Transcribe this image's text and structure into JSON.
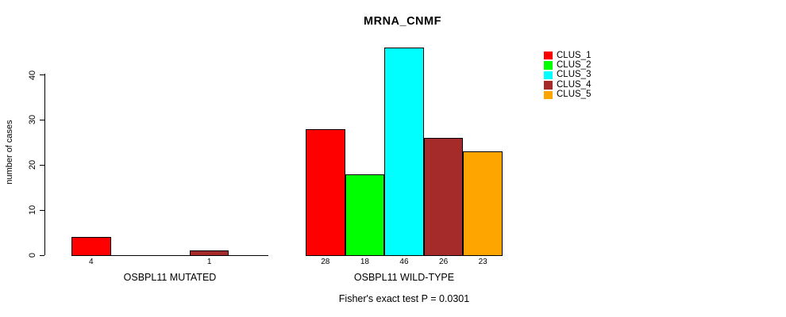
{
  "chart_data": {
    "type": "bar",
    "title": "MRNA_CNMF",
    "xlabel": "",
    "ylabel": "number of cases",
    "ylim": [
      0,
      46
    ],
    "yticks": [
      0,
      10,
      20,
      30,
      40
    ],
    "grid": false,
    "legend_position": "top-right",
    "series": [
      "CLUS_1",
      "CLUS_2",
      "CLUS_3",
      "CLUS_4",
      "CLUS_5"
    ],
    "colors": [
      "#FF0000",
      "#00FF00",
      "#00FFFF",
      "#A52A2A",
      "#FFA500"
    ],
    "groups": [
      {
        "label": "OSBPL11 MUTATED",
        "values": [
          4,
          0,
          0,
          1,
          0
        ],
        "bar_labels": [
          "4",
          "",
          "",
          "1",
          ""
        ]
      },
      {
        "label": "OSBPL11 WILD-TYPE",
        "values": [
          28,
          18,
          46,
          26,
          23
        ],
        "bar_labels": [
          "28",
          "18",
          "46",
          "26",
          "23"
        ]
      }
    ],
    "annotation": "Fisher's exact test P = 0.0301"
  },
  "legend": {
    "entries": [
      {
        "label": "CLUS_1",
        "color": "#FF0000"
      },
      {
        "label": "CLUS_2",
        "color": "#00FF00"
      },
      {
        "label": "CLUS_3",
        "color": "#00FFFF"
      },
      {
        "label": "CLUS_4",
        "color": "#A52A2A"
      },
      {
        "label": "CLUS_5",
        "color": "#FFA500"
      }
    ]
  }
}
